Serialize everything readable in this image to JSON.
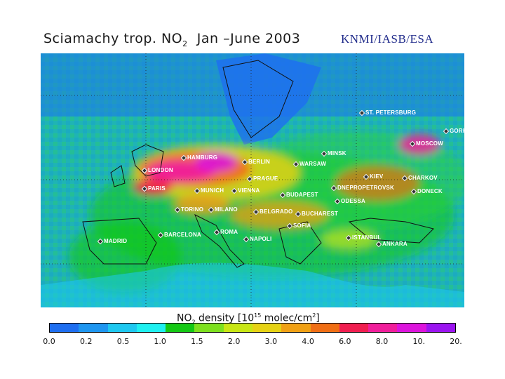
{
  "title": {
    "main": "Sciamachy trop. NO",
    "sub": "2",
    "period": "Jan –June 2003"
  },
  "credit": "KNMI/IASB/ESA",
  "cities": [
    {
      "name": "ST. PETERSBURG"
    },
    {
      "name": "GORKI"
    },
    {
      "name": "MOSCOW"
    },
    {
      "name": "MINSK"
    },
    {
      "name": "HAMBURG"
    },
    {
      "name": "BERLIN"
    },
    {
      "name": "WARSAW"
    },
    {
      "name": "LONDON"
    },
    {
      "name": "PRAGUE"
    },
    {
      "name": "KIEV"
    },
    {
      "name": "CHARKOV"
    },
    {
      "name": "PARIS"
    },
    {
      "name": "MUNICH"
    },
    {
      "name": "VIENNA"
    },
    {
      "name": "BUDAPEST"
    },
    {
      "name": "DNEPROPETROVSK"
    },
    {
      "name": "DONECK"
    },
    {
      "name": "ODESSA"
    },
    {
      "name": "TORINO"
    },
    {
      "name": "MILANO"
    },
    {
      "name": "BELGRADO"
    },
    {
      "name": "BUCHAREST"
    },
    {
      "name": "SOFIA"
    },
    {
      "name": "BARCELONA"
    },
    {
      "name": "ROMA"
    },
    {
      "name": "ISTANBUL"
    },
    {
      "name": "MADRID"
    },
    {
      "name": "NAPOLI"
    },
    {
      "name": "ANKARA"
    }
  ],
  "legend": {
    "title_prefix": "NO",
    "title_sub": "2",
    "title_mid": " density [10",
    "title_exp": "15",
    "title_unit": " molec/cm",
    "title_unit_exp": "2",
    "title_end": "]",
    "colors": [
      "#1e6ef0",
      "#1e96f0",
      "#1ec8f0",
      "#1ef0f0",
      "#14c814",
      "#7de01e",
      "#c8e614",
      "#e6d214",
      "#f0a014",
      "#f06e14",
      "#f01e50",
      "#f01e9b",
      "#dc14dc",
      "#9b14f0"
    ],
    "ticks": [
      "0.0",
      "0.2",
      "0.5",
      "1.0",
      "1.5",
      "2.0",
      "3.0",
      "4.0",
      "6.0",
      "8.0",
      "10.",
      "20."
    ]
  }
}
